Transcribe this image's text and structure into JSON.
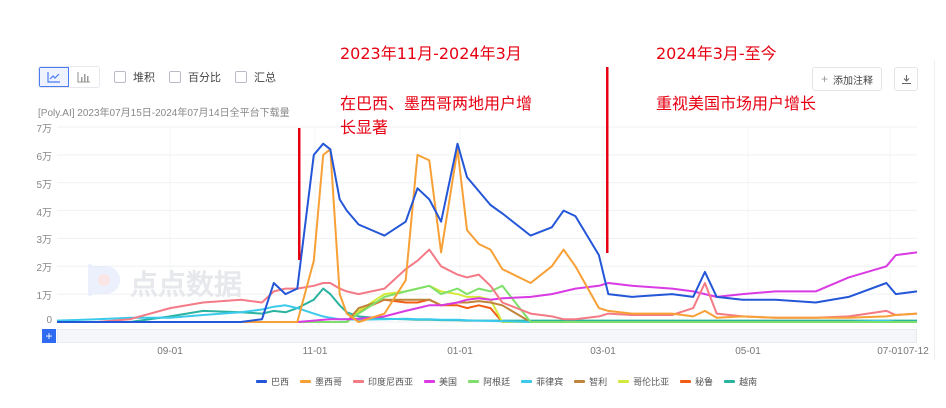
{
  "toolbar": {
    "chart_types": [
      {
        "name": "line-chart",
        "active": true
      },
      {
        "name": "bar-chart",
        "active": false
      }
    ],
    "checkboxes": [
      {
        "label": "堆积",
        "checked": false
      },
      {
        "label": "百分比",
        "checked": false
      },
      {
        "label": "汇总",
        "checked": false
      }
    ],
    "add_annotation_label": "添加注释",
    "download_icon": "download-icon"
  },
  "subtitle": "[Poly.AI]  2023年07月15日-2024年07月14日全平台下载量",
  "watermark": "点点数据",
  "annotations": [
    {
      "heading": "2023年11月-2024年3月",
      "body_line1": "在巴西、墨西哥两地用户增",
      "body_line2": "长显著"
    },
    {
      "heading": "2024年3月-至今",
      "body_line1": "重视美国市场用户增长"
    }
  ],
  "colors": {
    "annotation_red": "#e60012",
    "accent_blue": "#2f6bf0"
  },
  "chart_data": {
    "type": "line",
    "title": "[Poly.AI] 2023年07月15日-2024年07月14日全平台下载量",
    "xlabel": "",
    "ylabel": "",
    "x_range": [
      "2023-07-15",
      "2024-07-14"
    ],
    "x_ticks": [
      "09-01",
      "11-01",
      "01-01",
      "03-01",
      "05-01",
      "07-01",
      "07-12"
    ],
    "y_ticks": [
      "0",
      "1万",
      "2万",
      "3万",
      "4万",
      "5万",
      "6万",
      "7万"
    ],
    "ylim": [
      0,
      70000
    ],
    "grid": true,
    "legend_position": "bottom",
    "x": [
      "07-15",
      "08-01",
      "08-15",
      "09-01",
      "09-15",
      "10-01",
      "10-10",
      "10-15",
      "10-20",
      "10-25",
      "11-01",
      "11-05",
      "11-08",
      "11-12",
      "11-15",
      "11-20",
      "12-01",
      "12-10",
      "12-15",
      "12-20",
      "12-25",
      "01-01",
      "01-05",
      "01-10",
      "01-15",
      "01-20",
      "02-01",
      "02-10",
      "02-15",
      "02-20",
      "03-01",
      "03-05",
      "03-15",
      "04-01",
      "04-10",
      "04-15",
      "04-20",
      "05-01",
      "05-15",
      "06-01",
      "06-15",
      "07-01",
      "07-05",
      "07-14"
    ],
    "series": [
      {
        "name": "巴西",
        "color": "#2456d8",
        "values": [
          0,
          0,
          0,
          0,
          0,
          0,
          1000,
          14000,
          10000,
          12000,
          60000,
          64000,
          62000,
          44000,
          40000,
          35000,
          31000,
          36000,
          48000,
          44000,
          36000,
          64000,
          52000,
          47000,
          42000,
          39000,
          31000,
          34000,
          40000,
          38000,
          24000,
          10000,
          9000,
          10000,
          9000,
          18000,
          9000,
          8000,
          8000,
          7000,
          9000,
          14000,
          10000,
          11000
        ]
      },
      {
        "name": "墨西哥",
        "color": "#f7a035",
        "values": [
          0,
          0,
          0,
          0,
          0,
          0,
          0,
          0,
          0,
          0,
          22000,
          60000,
          62000,
          10000,
          3000,
          0,
          3000,
          15000,
          60000,
          58000,
          25000,
          62000,
          33000,
          28000,
          26000,
          19000,
          14000,
          20000,
          26000,
          20000,
          5000,
          4000,
          3000,
          3000,
          2000,
          4000,
          1500,
          2000,
          1500,
          1500,
          1500,
          2000,
          2500,
          3000
        ]
      },
      {
        "name": "印度尼西亚",
        "color": "#f47a86",
        "values": [
          0,
          0,
          1000,
          5000,
          7000,
          8000,
          7000,
          11000,
          12000,
          12000,
          13000,
          14000,
          14000,
          12000,
          11000,
          10000,
          12000,
          19000,
          22000,
          26000,
          20000,
          17000,
          16000,
          17000,
          13000,
          7000,
          3000,
          2000,
          1000,
          1000,
          2000,
          3000,
          2500,
          2500,
          5000,
          14000,
          3000,
          2000,
          1500,
          1500,
          2000,
          4000,
          2500,
          3000
        ]
      },
      {
        "name": "美国",
        "color": "#d93ae3",
        "values": [
          0,
          0,
          0,
          0,
          0,
          0,
          0,
          0,
          0,
          0,
          500,
          800,
          1000,
          1000,
          1000,
          1200,
          2000,
          4000,
          5000,
          6000,
          6000,
          7000,
          8000,
          8500,
          8000,
          8500,
          9000,
          10000,
          11000,
          12000,
          13000,
          14000,
          13000,
          12000,
          11000,
          10000,
          9000,
          10000,
          11000,
          11000,
          16000,
          20000,
          24000,
          25000
        ]
      },
      {
        "name": "阿根廷",
        "color": "#7ee06a",
        "values": [
          0,
          0,
          0,
          0,
          0,
          0,
          0,
          0,
          0,
          0,
          0,
          0,
          0,
          0,
          0,
          3000,
          9000,
          11000,
          12000,
          13000,
          10000,
          12000,
          10000,
          12000,
          11000,
          13000,
          0,
          0,
          0,
          0,
          0,
          0,
          0,
          0,
          0,
          0,
          0,
          0,
          0,
          0,
          0,
          0,
          0,
          0
        ]
      },
      {
        "name": "菲律宾",
        "color": "#3bc9ec",
        "values": [
          500,
          1000,
          1500,
          1500,
          2500,
          3500,
          4500,
          5500,
          6000,
          5000,
          3000,
          2000,
          1500,
          1000,
          1000,
          800,
          1000,
          1200,
          1000,
          1000,
          800,
          800,
          600,
          500,
          400,
          300,
          0,
          0,
          0,
          0,
          0,
          0,
          0,
          0,
          0,
          0,
          0,
          0,
          0,
          0,
          0,
          500,
          0,
          0
        ]
      },
      {
        "name": "智利",
        "color": "#c0843a",
        "values": [
          0,
          0,
          0,
          0,
          0,
          0,
          0,
          0,
          0,
          0,
          0,
          0,
          0,
          0,
          0,
          5000,
          8000,
          8000,
          8000,
          8000,
          6000,
          7000,
          7000,
          7500,
          7000,
          6000,
          0,
          0,
          0,
          0,
          0,
          0,
          0,
          0,
          0,
          0,
          0,
          0,
          0,
          0,
          0,
          0,
          0,
          0
        ]
      },
      {
        "name": "哥伦比亚",
        "color": "#d4ea3a",
        "values": [
          0,
          0,
          0,
          0,
          0,
          0,
          0,
          0,
          0,
          0,
          0,
          0,
          0,
          0,
          0,
          4000,
          10000,
          11000,
          12000,
          13000,
          11000,
          10000,
          9000,
          9000,
          8000,
          0,
          0,
          0,
          0,
          0,
          0,
          0,
          0,
          0,
          0,
          0,
          0,
          0,
          0,
          0,
          0,
          0,
          0,
          0
        ]
      },
      {
        "name": "秘鲁",
        "color": "#f25c14",
        "values": [
          0,
          0,
          0,
          0,
          0,
          0,
          0,
          0,
          0,
          0,
          0,
          0,
          0,
          0,
          0,
          4000,
          8000,
          7000,
          7000,
          8000,
          6000,
          6000,
          5000,
          6000,
          5000,
          0,
          0,
          0,
          0,
          0,
          0,
          0,
          0,
          0,
          0,
          0,
          0,
          0,
          0,
          0,
          0,
          0,
          0,
          0
        ]
      },
      {
        "name": "越南",
        "color": "#2cb3a0",
        "values": [
          0,
          0,
          0,
          2000,
          4000,
          3500,
          3000,
          4000,
          3500,
          5000,
          8000,
          12000,
          10000,
          6000,
          3500,
          2000,
          1200,
          1000,
          800,
          800,
          700,
          600,
          500,
          500,
          500,
          500,
          500,
          500,
          500,
          500,
          500,
          500,
          500,
          500,
          500,
          500,
          500,
          500,
          500,
          500,
          500,
          500,
          500,
          500
        ]
      }
    ]
  },
  "legend": [
    {
      "label": "巴西",
      "color": "#2456d8"
    },
    {
      "label": "墨西哥",
      "color": "#f7a035"
    },
    {
      "label": "印度尼西亚",
      "color": "#f47a86"
    },
    {
      "label": "美国",
      "color": "#d93ae3"
    },
    {
      "label": "阿根廷",
      "color": "#7ee06a"
    },
    {
      "label": "菲律宾",
      "color": "#3bc9ec"
    },
    {
      "label": "智利",
      "color": "#c0843a"
    },
    {
      "label": "哥伦比亚",
      "color": "#d4ea3a"
    },
    {
      "label": "秘鲁",
      "color": "#f25c14"
    },
    {
      "label": "越南",
      "color": "#2cb3a0"
    }
  ]
}
